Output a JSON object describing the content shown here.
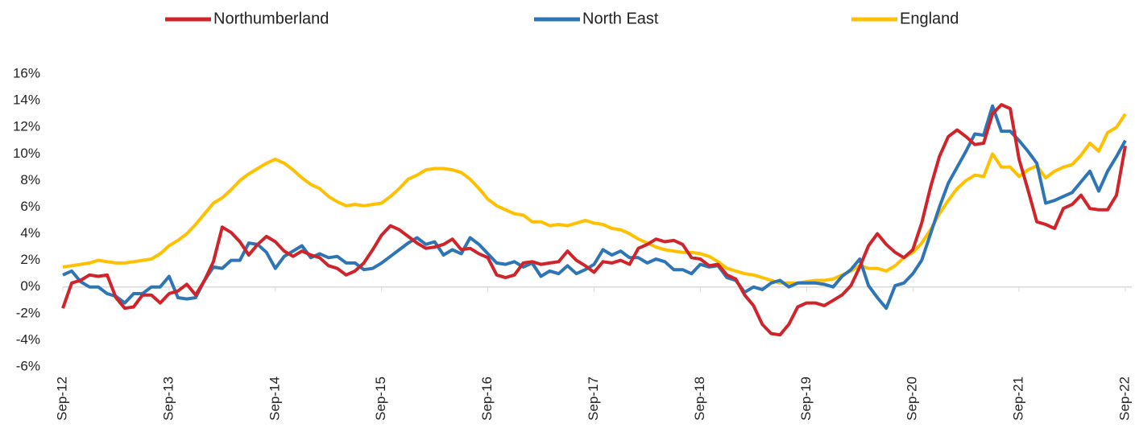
{
  "chart_data": {
    "type": "line",
    "categories": [
      "Sep-12",
      null,
      null,
      null,
      null,
      null,
      null,
      null,
      null,
      null,
      null,
      null,
      "Sep-13",
      null,
      null,
      null,
      null,
      null,
      null,
      null,
      null,
      null,
      null,
      null,
      "Sep-14",
      null,
      null,
      null,
      null,
      null,
      null,
      null,
      null,
      null,
      null,
      null,
      "Sep-15",
      null,
      null,
      null,
      null,
      null,
      null,
      null,
      null,
      null,
      null,
      null,
      "Sep-16",
      null,
      null,
      null,
      null,
      null,
      null,
      null,
      null,
      null,
      null,
      null,
      "Sep-17",
      null,
      null,
      null,
      null,
      null,
      null,
      null,
      null,
      null,
      null,
      null,
      "Sep-18",
      null,
      null,
      null,
      null,
      null,
      null,
      null,
      null,
      null,
      null,
      null,
      "Sep-19",
      null,
      null,
      null,
      null,
      null,
      null,
      null,
      null,
      null,
      null,
      null,
      "Sep-20",
      null,
      null,
      null,
      null,
      null,
      null,
      null,
      null,
      null,
      null,
      null,
      "Sep-21",
      null,
      null,
      null,
      null,
      null,
      null,
      null,
      null,
      null,
      null,
      null,
      "Sep-22"
    ],
    "series": [
      {
        "name": "Northumberland",
        "color": "#d0232a",
        "values": [
          -1.6,
          0.3,
          0.5,
          0.9,
          0.8,
          0.9,
          -0.8,
          -1.6,
          -1.5,
          -0.6,
          -0.6,
          -1.2,
          -0.5,
          -0.3,
          0.2,
          -0.6,
          0.5,
          1.9,
          4.5,
          4.1,
          3.4,
          2.4,
          3.2,
          3.8,
          3.4,
          2.7,
          2.3,
          2.7,
          2.4,
          2.2,
          1.6,
          1.4,
          0.9,
          1.2,
          1.8,
          2.8,
          3.9,
          4.6,
          4.3,
          3.8,
          3.3,
          2.9,
          3.0,
          3.2,
          3.6,
          2.8,
          2.9,
          2.5,
          2.2,
          0.9,
          0.7,
          0.9,
          1.8,
          1.9,
          1.7,
          1.8,
          1.9,
          2.7,
          2.0,
          1.6,
          1.1,
          1.9,
          1.8,
          2.0,
          1.7,
          2.9,
          3.2,
          3.6,
          3.4,
          3.5,
          3.2,
          2.2,
          2.1,
          1.6,
          1.7,
          0.9,
          0.6,
          -0.6,
          -1.4,
          -2.8,
          -3.5,
          -3.6,
          -2.8,
          -1.5,
          -1.2,
          -1.2,
          -1.4,
          -1.0,
          -0.6,
          0.1,
          1.5,
          3.1,
          4.0,
          3.2,
          2.6,
          2.2,
          2.8,
          4.8,
          7.5,
          9.8,
          11.3,
          11.8,
          11.3,
          10.7,
          10.8,
          13.0,
          13.7,
          13.4,
          9.6,
          7.3,
          4.9,
          4.7,
          4.4,
          5.9,
          6.2,
          6.9,
          5.9,
          5.8,
          5.8,
          6.9,
          10.6
        ]
      },
      {
        "name": "North East",
        "color": "#2e75b6",
        "values": [
          0.9,
          1.2,
          0.4,
          0.0,
          0.0,
          -0.5,
          -0.7,
          -1.2,
          -0.5,
          -0.5,
          0.0,
          0.0,
          0.8,
          -0.8,
          -0.9,
          -0.8,
          0.5,
          1.5,
          1.4,
          2.0,
          2.0,
          3.3,
          3.2,
          2.6,
          1.4,
          2.3,
          2.7,
          3.1,
          2.2,
          2.5,
          2.2,
          2.3,
          1.8,
          1.8,
          1.3,
          1.4,
          1.8,
          2.3,
          2.8,
          3.3,
          3.7,
          3.2,
          3.4,
          2.4,
          2.8,
          2.5,
          3.7,
          3.2,
          2.5,
          1.8,
          1.7,
          1.9,
          1.5,
          1.8,
          0.8,
          1.2,
          1.0,
          1.6,
          1.0,
          1.3,
          1.7,
          2.8,
          2.4,
          2.7,
          2.2,
          2.2,
          1.8,
          2.1,
          1.9,
          1.3,
          1.3,
          1.0,
          1.7,
          1.5,
          1.6,
          0.7,
          0.5,
          -0.4,
          0.0,
          -0.2,
          0.3,
          0.5,
          0.0,
          0.3,
          0.3,
          0.3,
          0.2,
          0.0,
          0.8,
          1.3,
          2.1,
          0.1,
          -0.8,
          -1.6,
          0.1,
          0.3,
          1.0,
          2.0,
          4.0,
          6.0,
          7.8,
          9.0,
          10.2,
          11.5,
          11.4,
          13.6,
          11.7,
          11.7,
          11.0,
          10.2,
          9.3,
          6.3,
          6.5,
          6.8,
          7.1,
          7.9,
          8.7,
          7.2,
          8.7,
          9.8,
          11.0
        ]
      },
      {
        "name": "England",
        "color": "#ffc000",
        "values": [
          1.5,
          1.6,
          1.7,
          1.8,
          2.0,
          1.9,
          1.8,
          1.8,
          1.9,
          2.0,
          2.1,
          2.5,
          3.1,
          3.5,
          4.0,
          4.7,
          5.5,
          6.3,
          6.7,
          7.3,
          8.0,
          8.5,
          8.9,
          9.3,
          9.6,
          9.3,
          8.8,
          8.2,
          7.7,
          7.4,
          6.8,
          6.4,
          6.1,
          6.2,
          6.1,
          6.2,
          6.3,
          6.8,
          7.4,
          8.1,
          8.4,
          8.8,
          8.9,
          8.9,
          8.8,
          8.6,
          8.1,
          7.4,
          6.6,
          6.1,
          5.8,
          5.5,
          5.4,
          4.9,
          4.9,
          4.6,
          4.7,
          4.6,
          4.8,
          5.0,
          4.8,
          4.7,
          4.4,
          4.3,
          4.0,
          3.6,
          3.3,
          3.0,
          2.8,
          2.7,
          2.6,
          2.6,
          2.5,
          2.3,
          1.9,
          1.4,
          1.2,
          1.0,
          0.9,
          0.7,
          0.5,
          0.3,
          0.3,
          0.3,
          0.4,
          0.5,
          0.5,
          0.6,
          0.9,
          1.2,
          1.6,
          1.4,
          1.4,
          1.2,
          1.6,
          2.2,
          2.6,
          3.3,
          4.3,
          5.5,
          6.5,
          7.4,
          8.0,
          8.4,
          8.3,
          10.0,
          9.0,
          9.0,
          8.3,
          8.8,
          9.1,
          8.2,
          8.7,
          9.0,
          9.2,
          9.9,
          10.8,
          10.2,
          11.6,
          12.0,
          13.0
        ]
      }
    ],
    "ylim": [
      -6,
      16
    ],
    "yticks": [
      {
        "value": -6,
        "label": "-6%"
      },
      {
        "value": -4,
        "label": "-4%"
      },
      {
        "value": -2,
        "label": "-2%"
      },
      {
        "value": 0,
        "label": "0%"
      },
      {
        "value": 2,
        "label": "2%"
      },
      {
        "value": 4,
        "label": "4%"
      },
      {
        "value": 6,
        "label": "6%"
      },
      {
        "value": 8,
        "label": "8%"
      },
      {
        "value": 10,
        "label": "10%"
      },
      {
        "value": 12,
        "label": "12%"
      },
      {
        "value": 14,
        "label": "14%"
      },
      {
        "value": 16,
        "label": "16%"
      }
    ],
    "grid": false
  }
}
